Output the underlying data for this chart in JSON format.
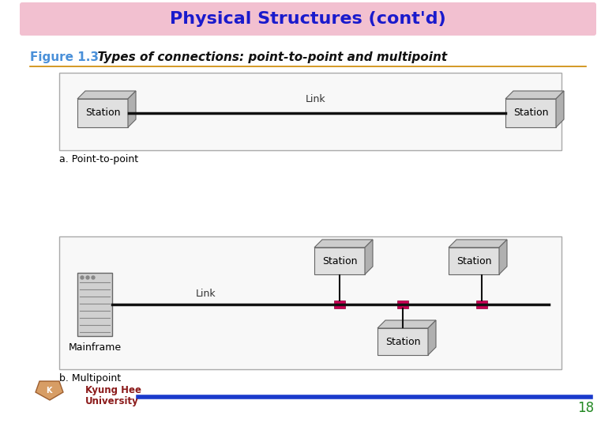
{
  "title": "Physical Structures (cont'd)",
  "title_bg": "#f2c0d0",
  "title_color": "#1a1acc",
  "fig_bg": "#ffffff",
  "figure_label": "Figure 1.3",
  "figure_label_color": "#4a90d9",
  "figure_subtitle": "  Types of connections: point-to-point and multipoint",
  "figure_subtitle_color": "#111111",
  "separator_color": "#cc8800",
  "footer_line_color": "#1a3acc",
  "footer_text_color": "#8b1a1a",
  "page_number": "18",
  "page_number_color": "#228822",
  "caption_a": "a. Point-to-point",
  "caption_b": "b. Multipoint",
  "station_face": "#e0e0e0",
  "station_top": "#cccccc",
  "station_right": "#b0b0b0",
  "station_edge": "#666666",
  "link_color": "#111111",
  "connector_face": "#cc0055",
  "connector_edge": "#880033",
  "box_edge": "#aaaaaa",
  "box_face": "#f8f8f8",
  "mainframe_face": "#d0d0d0",
  "mainframe_line": "#888888"
}
